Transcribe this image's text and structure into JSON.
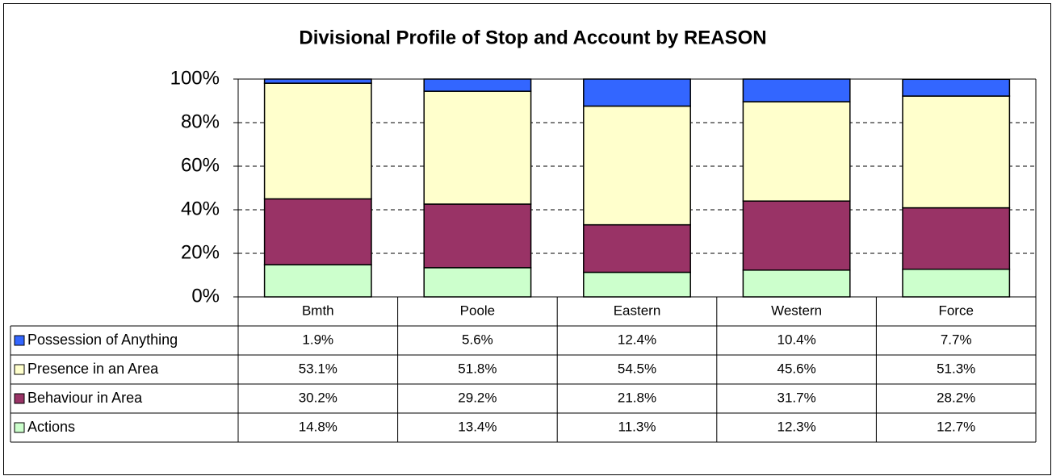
{
  "chart_data": {
    "type": "stacked_bar",
    "title": "Divisional Profile of Stop and Account by REASON",
    "categories": [
      "Bmth",
      "Poole",
      "Eastern",
      "Western",
      "Force"
    ],
    "series": [
      {
        "name": "Possession of Anything",
        "color": "#3366ff",
        "values": [
          1.9,
          5.6,
          12.4,
          10.4,
          7.7
        ],
        "value_labels": [
          "1.9%",
          "5.6%",
          "12.4%",
          "10.4%",
          "7.7%"
        ]
      },
      {
        "name": "Presence in an Area",
        "color": "#ffffcc",
        "values": [
          53.1,
          51.8,
          54.5,
          45.6,
          51.3
        ],
        "value_labels": [
          "53.1%",
          "51.8%",
          "54.5%",
          "45.6%",
          "51.3%"
        ]
      },
      {
        "name": "Behaviour in Area",
        "color": "#993366",
        "values": [
          30.2,
          29.2,
          21.8,
          31.7,
          28.2
        ],
        "value_labels": [
          "30.2%",
          "29.2%",
          "21.8%",
          "31.7%",
          "28.2%"
        ]
      },
      {
        "name": "Actions",
        "color": "#ccffcc",
        "values": [
          14.8,
          13.4,
          11.3,
          12.3,
          12.7
        ],
        "value_labels": [
          "14.8%",
          "13.4%",
          "11.3%",
          "12.3%",
          "12.7%"
        ]
      }
    ],
    "ylim": [
      0,
      100
    ],
    "yticks": [
      {
        "value": 0,
        "label": "0%"
      },
      {
        "value": 20,
        "label": "20%"
      },
      {
        "value": 40,
        "label": "40%"
      },
      {
        "value": 60,
        "label": "60%"
      },
      {
        "value": 80,
        "label": "80%"
      },
      {
        "value": 100,
        "label": "100%"
      }
    ],
    "grid": true
  }
}
